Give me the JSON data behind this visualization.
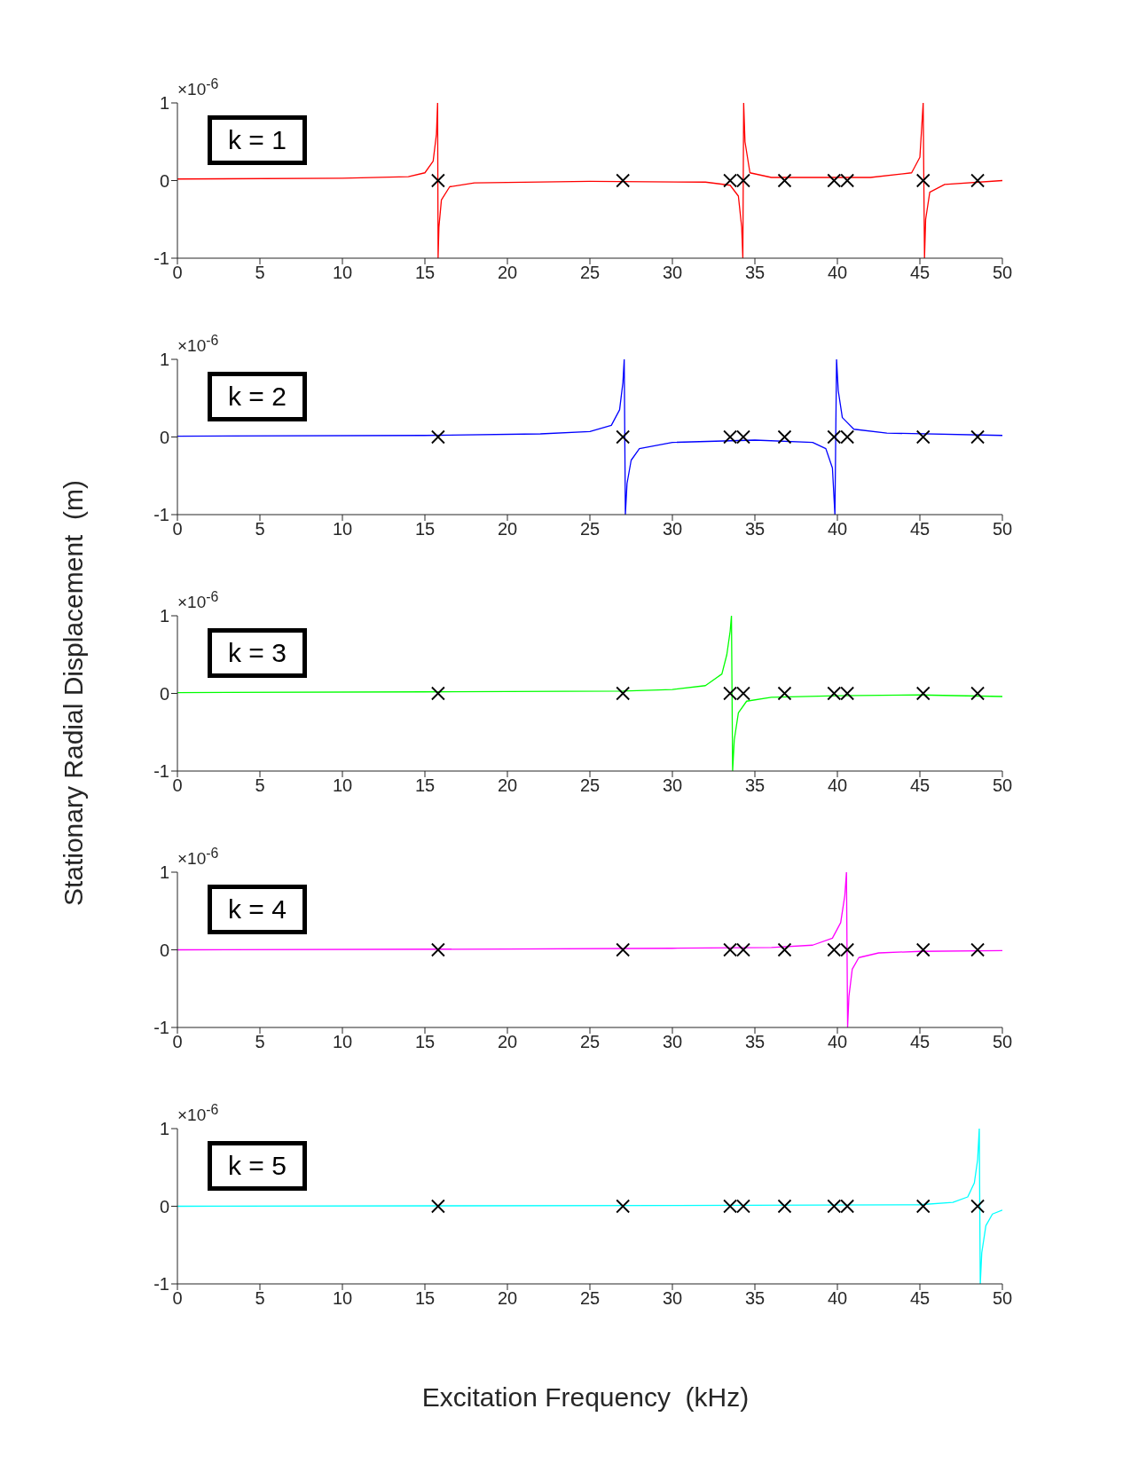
{
  "chart_data": [
    {
      "type": "line",
      "xlim": [
        0,
        50
      ],
      "xticks": [
        0,
        5,
        10,
        15,
        20,
        25,
        30,
        35,
        40,
        45,
        50
      ],
      "ylim": [
        -1,
        1
      ],
      "yticks": [
        -1,
        0,
        1
      ],
      "annotations": [
        "×10$^{-6}$",
        "k = 1"
      ],
      "series": [
        {
          "type": "line",
          "color": "#ff0000",
          "x": [
            0,
            10,
            14,
            15,
            15.5,
            15.7,
            15.77,
            15.8,
            15.85,
            16,
            16.5,
            18,
            25,
            32,
            33.5,
            34,
            34.2,
            34.27,
            34.32,
            34.4,
            34.7,
            36,
            42,
            44.5,
            45,
            45.2,
            45.28,
            45.35,
            45.6,
            46.5,
            50
          ],
          "values": [
            0.02,
            0.03,
            0.05,
            0.1,
            0.25,
            0.6,
            1,
            -1,
            -0.6,
            -0.25,
            -0.08,
            -0.03,
            -0.01,
            -0.02,
            -0.06,
            -0.2,
            -0.6,
            -1,
            1,
            0.5,
            0.1,
            0.04,
            0.04,
            0.1,
            0.3,
            1,
            -1,
            -0.5,
            -0.15,
            -0.05,
            0
          ]
        },
        {
          "type": "scatter",
          "color": "#000000",
          "marker": "cross",
          "x": [
            15.8,
            27.0,
            33.5,
            34.3,
            36.8,
            39.8,
            40.6,
            45.2,
            48.5
          ],
          "values": [
            0,
            0,
            0,
            0,
            0,
            0,
            0,
            0,
            0
          ]
        }
      ]
    },
    {
      "type": "line",
      "xlim": [
        0,
        50
      ],
      "xticks": [
        0,
        5,
        10,
        15,
        20,
        25,
        30,
        35,
        40,
        45,
        50
      ],
      "ylim": [
        -1,
        1
      ],
      "yticks": [
        -1,
        0,
        1
      ],
      "annotations": [
        "×10$^{-6}$",
        "k = 2"
      ],
      "series": [
        {
          "type": "line",
          "color": "#0000ff",
          "x": [
            0,
            15,
            22,
            25,
            26.3,
            26.8,
            27.0,
            27.08,
            27.15,
            27.25,
            27.5,
            28,
            30,
            35,
            38.5,
            39.3,
            39.7,
            39.85,
            39.95,
            40.05,
            40.3,
            41,
            43,
            50
          ],
          "values": [
            0.01,
            0.02,
            0.04,
            0.07,
            0.15,
            0.35,
            0.7,
            1,
            -1,
            -0.6,
            -0.3,
            -0.15,
            -0.07,
            -0.04,
            -0.07,
            -0.15,
            -0.4,
            -1,
            1,
            0.6,
            0.25,
            0.1,
            0.05,
            0.02
          ]
        },
        {
          "type": "scatter",
          "color": "#000000",
          "marker": "cross",
          "x": [
            15.8,
            27.0,
            33.5,
            34.3,
            36.8,
            39.8,
            40.6,
            45.2,
            48.5
          ],
          "values": [
            0,
            0,
            0,
            0,
            0,
            0,
            0,
            0,
            0
          ]
        }
      ]
    },
    {
      "type": "line",
      "xlim": [
        0,
        50
      ],
      "xticks": [
        0,
        5,
        10,
        15,
        20,
        25,
        30,
        35,
        40,
        45,
        50
      ],
      "ylim": [
        -1,
        1
      ],
      "yticks": [
        -1,
        0,
        1
      ],
      "ylabel": "Stationary Radial Displacement  (m)",
      "annotations": [
        "×10$^{-6}$",
        "k = 3"
      ],
      "series": [
        {
          "type": "line",
          "color": "#00ff00",
          "x": [
            0,
            15,
            27,
            30,
            32,
            33,
            33.3,
            33.5,
            33.58,
            33.65,
            33.75,
            34,
            34.5,
            36,
            40,
            45,
            50
          ],
          "values": [
            0.01,
            0.02,
            0.03,
            0.05,
            0.1,
            0.25,
            0.5,
            0.8,
            1,
            -1,
            -0.6,
            -0.25,
            -0.1,
            -0.05,
            -0.03,
            -0.02,
            -0.04
          ]
        },
        {
          "type": "scatter",
          "color": "#000000",
          "marker": "cross",
          "x": [
            15.8,
            27.0,
            33.5,
            34.3,
            36.8,
            39.8,
            40.6,
            45.2,
            48.5
          ],
          "values": [
            0,
            0,
            0,
            0,
            0,
            0,
            0,
            0,
            0
          ]
        }
      ]
    },
    {
      "type": "line",
      "xlim": [
        0,
        50
      ],
      "xticks": [
        0,
        5,
        10,
        15,
        20,
        25,
        30,
        35,
        40,
        45,
        50
      ],
      "ylim": [
        -1,
        1
      ],
      "yticks": [
        -1,
        0,
        1
      ],
      "annotations": [
        "×10$^{-6}$",
        "k = 4"
      ],
      "series": [
        {
          "type": "line",
          "color": "#ff00ff",
          "x": [
            0,
            20,
            30,
            36,
            38.5,
            39.7,
            40.2,
            40.45,
            40.55,
            40.62,
            40.7,
            40.9,
            41.3,
            42.5,
            45,
            50
          ],
          "values": [
            0,
            0.01,
            0.02,
            0.03,
            0.06,
            0.15,
            0.35,
            0.7,
            1,
            -1,
            -0.6,
            -0.25,
            -0.1,
            -0.04,
            -0.02,
            -0.01
          ]
        },
        {
          "type": "scatter",
          "color": "#000000",
          "marker": "cross",
          "x": [
            15.8,
            27.0,
            33.5,
            34.3,
            36.8,
            39.8,
            40.6,
            45.2,
            48.5
          ],
          "values": [
            0,
            0,
            0,
            0,
            0,
            0,
            0,
            0,
            0
          ]
        }
      ]
    },
    {
      "type": "line",
      "xlabel": "Excitation Frequency  (kHz)",
      "xlim": [
        0,
        50
      ],
      "xticks": [
        0,
        5,
        10,
        15,
        20,
        25,
        30,
        35,
        40,
        45,
        50
      ],
      "ylim": [
        -1,
        1
      ],
      "yticks": [
        -1,
        0,
        1
      ],
      "annotations": [
        "×10$^{-6}$",
        "k = 5"
      ],
      "series": [
        {
          "type": "line",
          "color": "#00ffff",
          "x": [
            0,
            30,
            45,
            47,
            47.9,
            48.3,
            48.5,
            48.6,
            48.66,
            48.75,
            49,
            49.4,
            50
          ],
          "values": [
            0,
            0.01,
            0.02,
            0.05,
            0.12,
            0.3,
            0.6,
            1,
            -1,
            -0.6,
            -0.25,
            -0.1,
            -0.05
          ]
        },
        {
          "type": "scatter",
          "color": "#000000",
          "marker": "cross",
          "x": [
            15.8,
            27.0,
            33.5,
            34.3,
            36.8,
            39.8,
            40.6,
            45.2,
            48.5
          ],
          "values": [
            0,
            0,
            0,
            0,
            0,
            0,
            0,
            0,
            0
          ]
        }
      ]
    }
  ]
}
